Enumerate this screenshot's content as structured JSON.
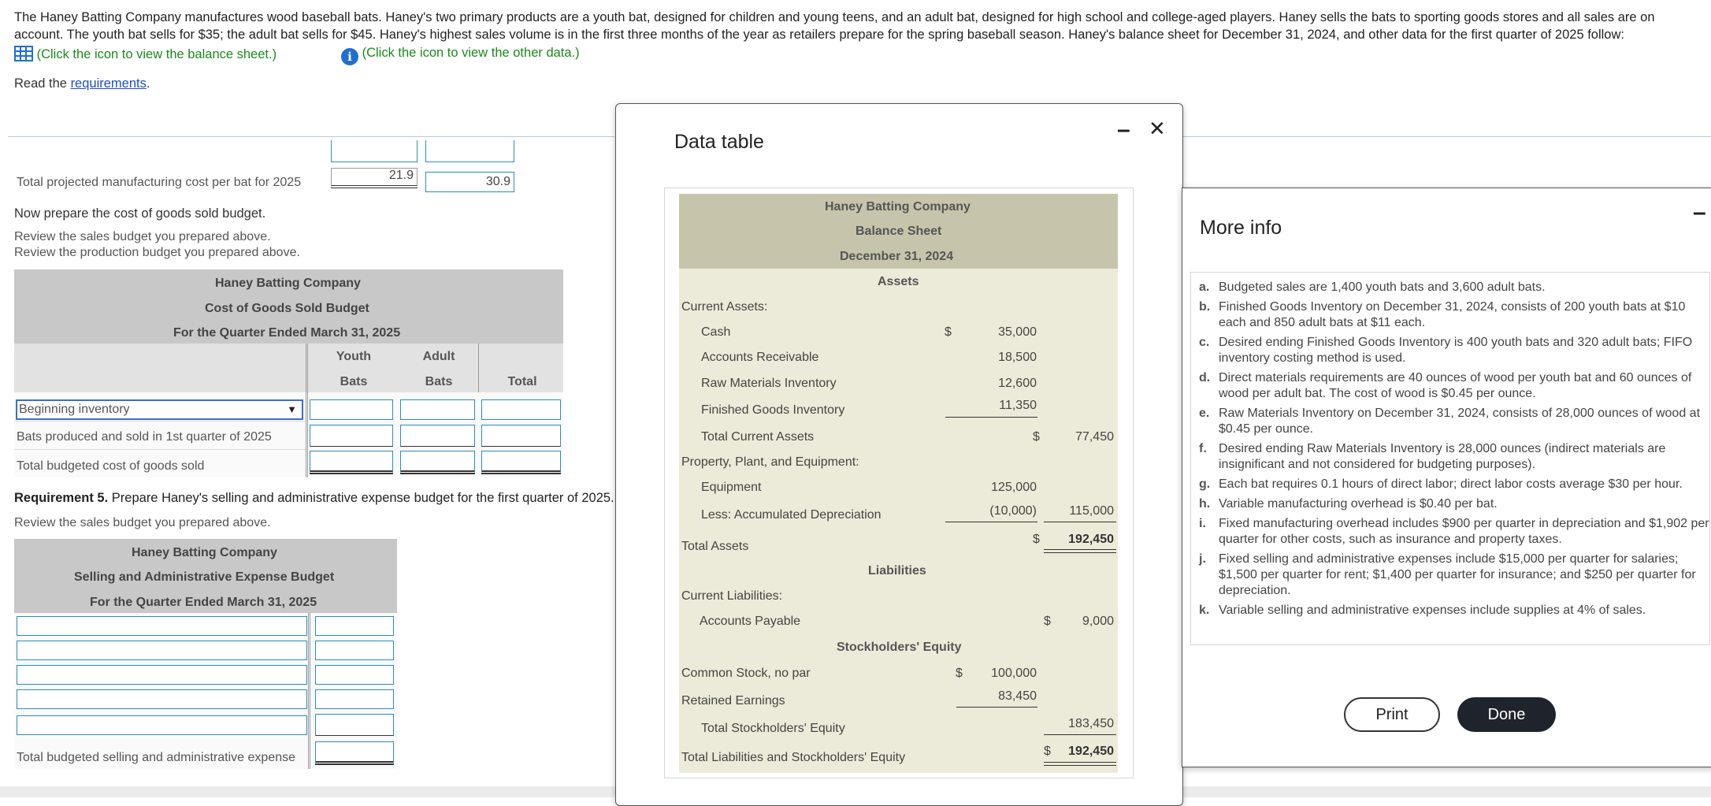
{
  "intro": {
    "paragraph": "The Haney Batting Company manufactures wood baseball bats. Haney's two primary products are a youth bat, designed for children and young teens, and an adult bat, designed for high school and college-aged players. Haney sells the bats to sporting goods stores and all sales are on account. The youth bat sells for $35; the adult bat sells for $45. Haney's highest sales volume is in the first three months of the year as retailers prepare for the spring baseball season. Haney's balance sheet for December 31, 2024, and other data for the first quarter of 2025 follow:",
    "balance_link": "(Click the icon to view the balance sheet.)",
    "other_link": "(Click the icon to view the other data.)",
    "read_prefix": "Read the ",
    "requirements_link": "requirements",
    "read_suffix": "."
  },
  "mfg": {
    "label": "Total projected manufacturing cost per bat for 2025",
    "youth": "21.9",
    "adult": "30.9"
  },
  "cogs_section": {
    "prepare": "Now prepare the cost of goods sold budget.",
    "review1": "Review the sales budget you prepared above.",
    "review2": "Review the production budget you prepared above.",
    "title1": "Haney Batting Company",
    "title2": "Cost of Goods Sold Budget",
    "title3": "For the Quarter Ended March 31, 2025",
    "col_youth_1": "Youth",
    "col_youth_2": "Bats",
    "col_adult_1": "Adult",
    "col_adult_2": "Bats",
    "col_total": "Total",
    "row1_select": "Beginning inventory",
    "row2": "Bats produced and sold in 1st quarter of 2025",
    "row3": "Total budgeted cost of goods sold"
  },
  "sa_section": {
    "req_bold": "Requirement 5.",
    "req_text": " Prepare Haney's selling and administrative expense budget for the first quarter of 2025.",
    "review": "Review the sales budget you prepared above.",
    "title1": "Haney Batting Company",
    "title2": "Selling and Administrative Expense Budget",
    "title3": "For the Quarter Ended March 31, 2025",
    "total_label": "Total budgeted selling and administrative expense"
  },
  "data_table": {
    "title": "Data table",
    "minimize": "–",
    "close": "✕",
    "company": "Haney Batting Company",
    "statement": "Balance Sheet",
    "date": "December 31, 2024",
    "assets_head": "Assets",
    "current_assets": "Current Assets:",
    "cash": "Cash",
    "cash_dollar": "$",
    "cash_val": "35,000",
    "ar": "Accounts Receivable",
    "ar_val": "18,500",
    "rm": "Raw Materials Inventory",
    "rm_val": "12,600",
    "fg": "Finished Goods Inventory",
    "fg_val": "11,350",
    "tca": "Total Current Assets",
    "tca_dollar": "$",
    "tca_val": "77,450",
    "ppe": "Property, Plant, and Equipment:",
    "equip": "Equipment",
    "equip_val": "125,000",
    "accum": "Less: Accumulated Depreciation",
    "accum_val": "(10,000)",
    "net_ppe": "115,000",
    "ta": "Total Assets",
    "ta_dollar": "$",
    "ta_val": "192,450",
    "liab_head": "Liabilities",
    "cl": "Current Liabilities:",
    "ap": "Accounts Payable",
    "ap_dollar": "$",
    "ap_val": "9,000",
    "se_head": "Stockholders' Equity",
    "cs": "Common Stock, no par",
    "cs_dollar": "$",
    "cs_val": "100,000",
    "re": "Retained Earnings",
    "re_val": "83,450",
    "tse": "Total Stockholders' Equity",
    "tse_val": "183,450",
    "tlse": "Total Liabilities and Stockholders' Equity",
    "tlse_dollar": "$",
    "tlse_val": "192,450"
  },
  "more_info": {
    "title": "More info",
    "minimize": "–",
    "items": [
      {
        "letter": "a.",
        "text": "Budgeted sales are 1,400 youth bats and 3,600 adult bats."
      },
      {
        "letter": "b.",
        "text": "Finished Goods Inventory on December 31, 2024, consists of 200 youth bats at $10 each and 850 adult bats at $11 each."
      },
      {
        "letter": "c.",
        "text": "Desired ending Finished Goods Inventory is 400 youth bats and 320 adult bats; FIFO inventory costing method is used."
      },
      {
        "letter": "d.",
        "text": "Direct materials requirements are 40 ounces of wood per youth bat and 60 ounces of wood per adult bat. The cost of wood is $0.45 per ounce."
      },
      {
        "letter": "e.",
        "text": "Raw Materials Inventory on December 31, 2024, consists of 28,000 ounces of wood at $0.45 per ounce."
      },
      {
        "letter": "f.",
        "text": "Desired ending Raw Materials Inventory is 28,000 ounces (indirect materials are insignificant and not considered for budgeting purposes)."
      },
      {
        "letter": "g.",
        "text": "Each bat requires 0.1 hours of direct labor; direct labor costs average $30 per hour."
      },
      {
        "letter": "h.",
        "text": "Variable manufacturing overhead is $0.40 per bat."
      },
      {
        "letter": "i.",
        "text": "Fixed manufacturing overhead includes $900 per quarter in depreciation and $1,902 per quarter for other costs, such as insurance and property taxes."
      },
      {
        "letter": "j.",
        "text": "Fixed selling and administrative expenses include $15,000 per quarter for salaries; $1,500 per quarter for rent; $1,400 per quarter for insurance; and $250 per quarter for depreciation."
      },
      {
        "letter": "k.",
        "text": "Variable selling and administrative expenses include supplies at 4% of sales."
      }
    ],
    "print": "Print",
    "done": "Done"
  },
  "colors": {
    "accent_blue": "#2b8dbd",
    "link_green": "#1a8a1a",
    "bs_bg": "#ecebd9",
    "bs_head": "#c6c5ac",
    "done_bg": "#1f242c"
  }
}
